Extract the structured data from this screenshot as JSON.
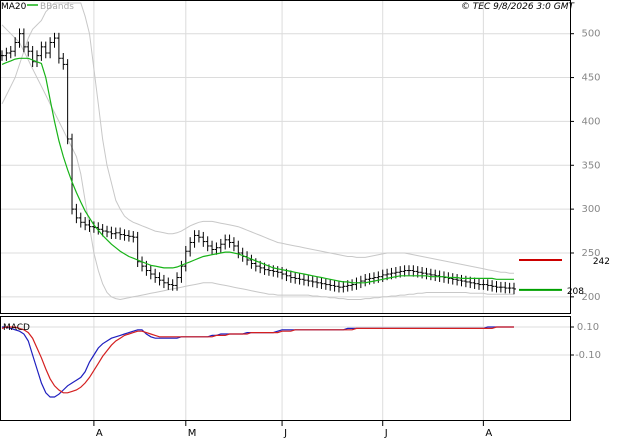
{
  "header": {
    "legend_ma": "MA20",
    "legend_bbands": "BBands",
    "copyright": "© TEC 9/8/2026 3:0 GMT"
  },
  "colors": {
    "ohlc": "#000000",
    "ma20": "#17b317",
    "bbands": "#c8c8c8",
    "macd": "#1f1fbf",
    "signal": "#d42020",
    "resistance": "#cc0000",
    "support": "#00a000",
    "grid": "#dcdcdc"
  },
  "levels": {
    "resistance": {
      "value": 242,
      "label": "242"
    },
    "support": {
      "value": 208,
      "label": "208"
    }
  },
  "chart_data": [
    {
      "type": "ohlc",
      "panel": "price",
      "yaxis": {
        "ticks": [
          500,
          450,
          400,
          350,
          300,
          250,
          200
        ],
        "labels": [
          "500",
          "450",
          "400",
          "350",
          "300",
          "250",
          "200"
        ],
        "range": [
          185,
          535
        ]
      },
      "xaxis": {
        "months": [
          "A",
          "M",
          "J",
          "J",
          "A"
        ],
        "month_start_index": [
          21,
          42,
          64,
          87,
          110
        ],
        "count": 118
      },
      "close": [
        475,
        478,
        480,
        490,
        500,
        485,
        480,
        468,
        475,
        485,
        478,
        490,
        495,
        472,
        465,
        380,
        300,
        290,
        285,
        282,
        280,
        279,
        277,
        275,
        274,
        272,
        273,
        271,
        270,
        269,
        268,
        240,
        235,
        230,
        226,
        222,
        219,
        216,
        214,
        213,
        222,
        235,
        252,
        262,
        270,
        268,
        263,
        258,
        254,
        256,
        260,
        265,
        262,
        258,
        250,
        246,
        242,
        238,
        235,
        233,
        231,
        230,
        229,
        228,
        226,
        224,
        222,
        221,
        220,
        219,
        218,
        217,
        216,
        215,
        214,
        213,
        212,
        211,
        212,
        213,
        214,
        216,
        218,
        220,
        221,
        222,
        223,
        225,
        226,
        227,
        228,
        229,
        230,
        230,
        229,
        228,
        227,
        226,
        225,
        224,
        223,
        222,
        221,
        220,
        219,
        218,
        217,
        216,
        215,
        214,
        214,
        213,
        212,
        211,
        211,
        210,
        210,
        209
      ],
      "ma20": [
        465,
        467,
        469,
        471,
        472,
        472,
        472,
        470,
        468,
        466,
        450,
        425,
        400,
        378,
        360,
        345,
        331,
        319,
        308,
        298,
        290,
        282,
        276,
        270,
        265,
        260,
        256,
        252,
        249,
        246,
        244,
        242,
        240,
        238,
        236,
        235,
        234,
        233,
        233,
        233,
        234,
        236,
        238,
        240,
        242,
        244,
        246,
        247,
        248,
        249,
        250,
        251,
        251,
        250,
        249,
        247,
        245,
        243,
        241,
        239,
        237,
        235,
        233,
        232,
        231,
        230,
        229,
        228,
        227,
        226,
        225,
        224,
        223,
        222,
        221,
        220,
        219,
        218,
        217,
        217,
        216,
        216,
        216,
        216,
        217,
        218,
        219,
        220,
        221,
        222,
        223,
        224,
        224,
        224,
        224,
        224,
        224,
        224,
        223,
        223,
        223,
        223,
        222,
        222,
        222,
        221,
        221,
        221,
        221,
        221,
        221,
        221,
        221,
        220,
        220,
        220,
        220,
        220
      ],
      "bbands_upper": [
        420,
        430,
        440,
        450,
        465,
        480,
        495,
        505,
        510,
        515,
        525,
        530,
        535,
        535,
        535,
        535,
        535,
        535,
        535,
        520,
        500,
        460,
        420,
        380,
        350,
        330,
        310,
        300,
        292,
        288,
        285,
        283,
        281,
        279,
        277,
        275,
        274,
        273,
        272,
        272,
        273,
        275,
        278,
        281,
        283,
        285,
        286,
        286,
        286,
        285,
        284,
        283,
        282,
        281,
        280,
        278,
        276,
        274,
        272,
        270,
        268,
        266,
        264,
        262,
        261,
        260,
        259,
        258,
        257,
        256,
        255,
        254,
        253,
        252,
        251,
        250,
        249,
        248,
        247,
        246,
        246,
        245,
        245,
        245,
        246,
        247,
        248,
        249,
        250,
        250,
        250,
        250,
        250,
        249,
        248,
        247,
        246,
        245,
        244,
        243,
        242,
        241,
        240,
        239,
        238,
        237,
        236,
        235,
        234,
        233,
        232,
        231,
        230,
        229,
        228,
        228,
        227,
        227
      ],
      "bbands_lower": [
        510,
        505,
        500,
        495,
        490,
        480,
        470,
        460,
        450,
        440,
        430,
        420,
        410,
        400,
        390,
        380,
        370,
        360,
        340,
        310,
        280,
        250,
        230,
        215,
        205,
        200,
        198,
        197,
        198,
        199,
        200,
        201,
        202,
        203,
        204,
        205,
        206,
        207,
        208,
        209,
        210,
        211,
        212,
        213,
        214,
        215,
        216,
        216,
        216,
        215,
        214,
        213,
        212,
        211,
        210,
        209,
        208,
        207,
        206,
        205,
        204,
        203,
        203,
        202,
        202,
        202,
        202,
        202,
        202,
        202,
        202,
        201,
        201,
        200,
        200,
        199,
        199,
        198,
        198,
        197,
        197,
        197,
        197,
        198,
        198,
        199,
        199,
        200,
        200,
        201,
        201,
        202,
        202,
        203,
        203,
        204,
        204,
        205,
        205,
        205,
        205,
        205,
        205,
        205,
        205,
        205,
        205,
        204,
        204,
        204,
        204,
        203,
        203,
        203,
        203,
        203,
        203,
        203
      ]
    },
    {
      "type": "line",
      "panel": "macd",
      "title": "MACD",
      "yaxis": {
        "ticks": [
          10,
          -10
        ],
        "labels": [
          "0.10",
          "-0.10"
        ],
        "range": [
          -55,
          15
        ]
      },
      "series": [
        {
          "key": "macd",
          "values": [
            10,
            10,
            9,
            8,
            7,
            5,
            0,
            -10,
            -20,
            -30,
            -37,
            -40,
            -40,
            -38,
            -35,
            -32,
            -30,
            -28,
            -26,
            -22,
            -15,
            -10,
            -5,
            -2,
            0,
            2,
            3,
            4,
            5,
            6,
            7,
            8,
            8,
            5,
            3,
            2,
            2,
            2,
            2,
            2,
            2,
            3,
            3,
            3,
            3,
            3,
            3,
            3,
            4,
            4,
            5,
            5,
            5,
            5,
            5,
            5,
            6,
            6,
            6,
            6,
            6,
            6,
            6,
            7,
            8,
            8,
            8,
            8,
            8,
            8,
            8,
            8,
            8,
            8,
            8,
            8,
            8,
            8,
            8,
            9,
            9,
            9,
            9,
            9,
            9,
            9,
            9,
            9,
            9,
            9,
            9,
            9,
            9,
            9,
            9,
            9,
            9,
            9,
            9,
            9,
            9,
            9,
            9,
            9,
            9,
            9,
            9,
            9,
            9,
            9,
            9,
            10,
            10,
            10,
            10,
            10,
            10,
            10
          ]
        },
        {
          "key": "signal",
          "values": [
            9,
            10,
            10,
            10,
            9,
            8,
            6,
            2,
            -5,
            -12,
            -20,
            -27,
            -32,
            -35,
            -37,
            -37,
            -36,
            -35,
            -33,
            -30,
            -26,
            -21,
            -16,
            -11,
            -7,
            -3,
            0,
            2,
            4,
            5,
            6,
            7,
            7,
            6,
            5,
            4,
            3,
            3,
            3,
            3,
            3,
            3,
            3,
            3,
            3,
            3,
            3,
            3,
            3,
            4,
            4,
            4,
            5,
            5,
            5,
            5,
            5,
            6,
            6,
            6,
            6,
            6,
            6,
            6,
            7,
            7,
            7,
            8,
            8,
            8,
            8,
            8,
            8,
            8,
            8,
            8,
            8,
            8,
            8,
            8,
            8,
            9,
            9,
            9,
            9,
            9,
            9,
            9,
            9,
            9,
            9,
            9,
            9,
            9,
            9,
            9,
            9,
            9,
            9,
            9,
            9,
            9,
            9,
            9,
            9,
            9,
            9,
            9,
            9,
            9,
            9,
            9,
            9,
            10,
            10,
            10,
            10,
            10
          ]
        }
      ]
    }
  ]
}
